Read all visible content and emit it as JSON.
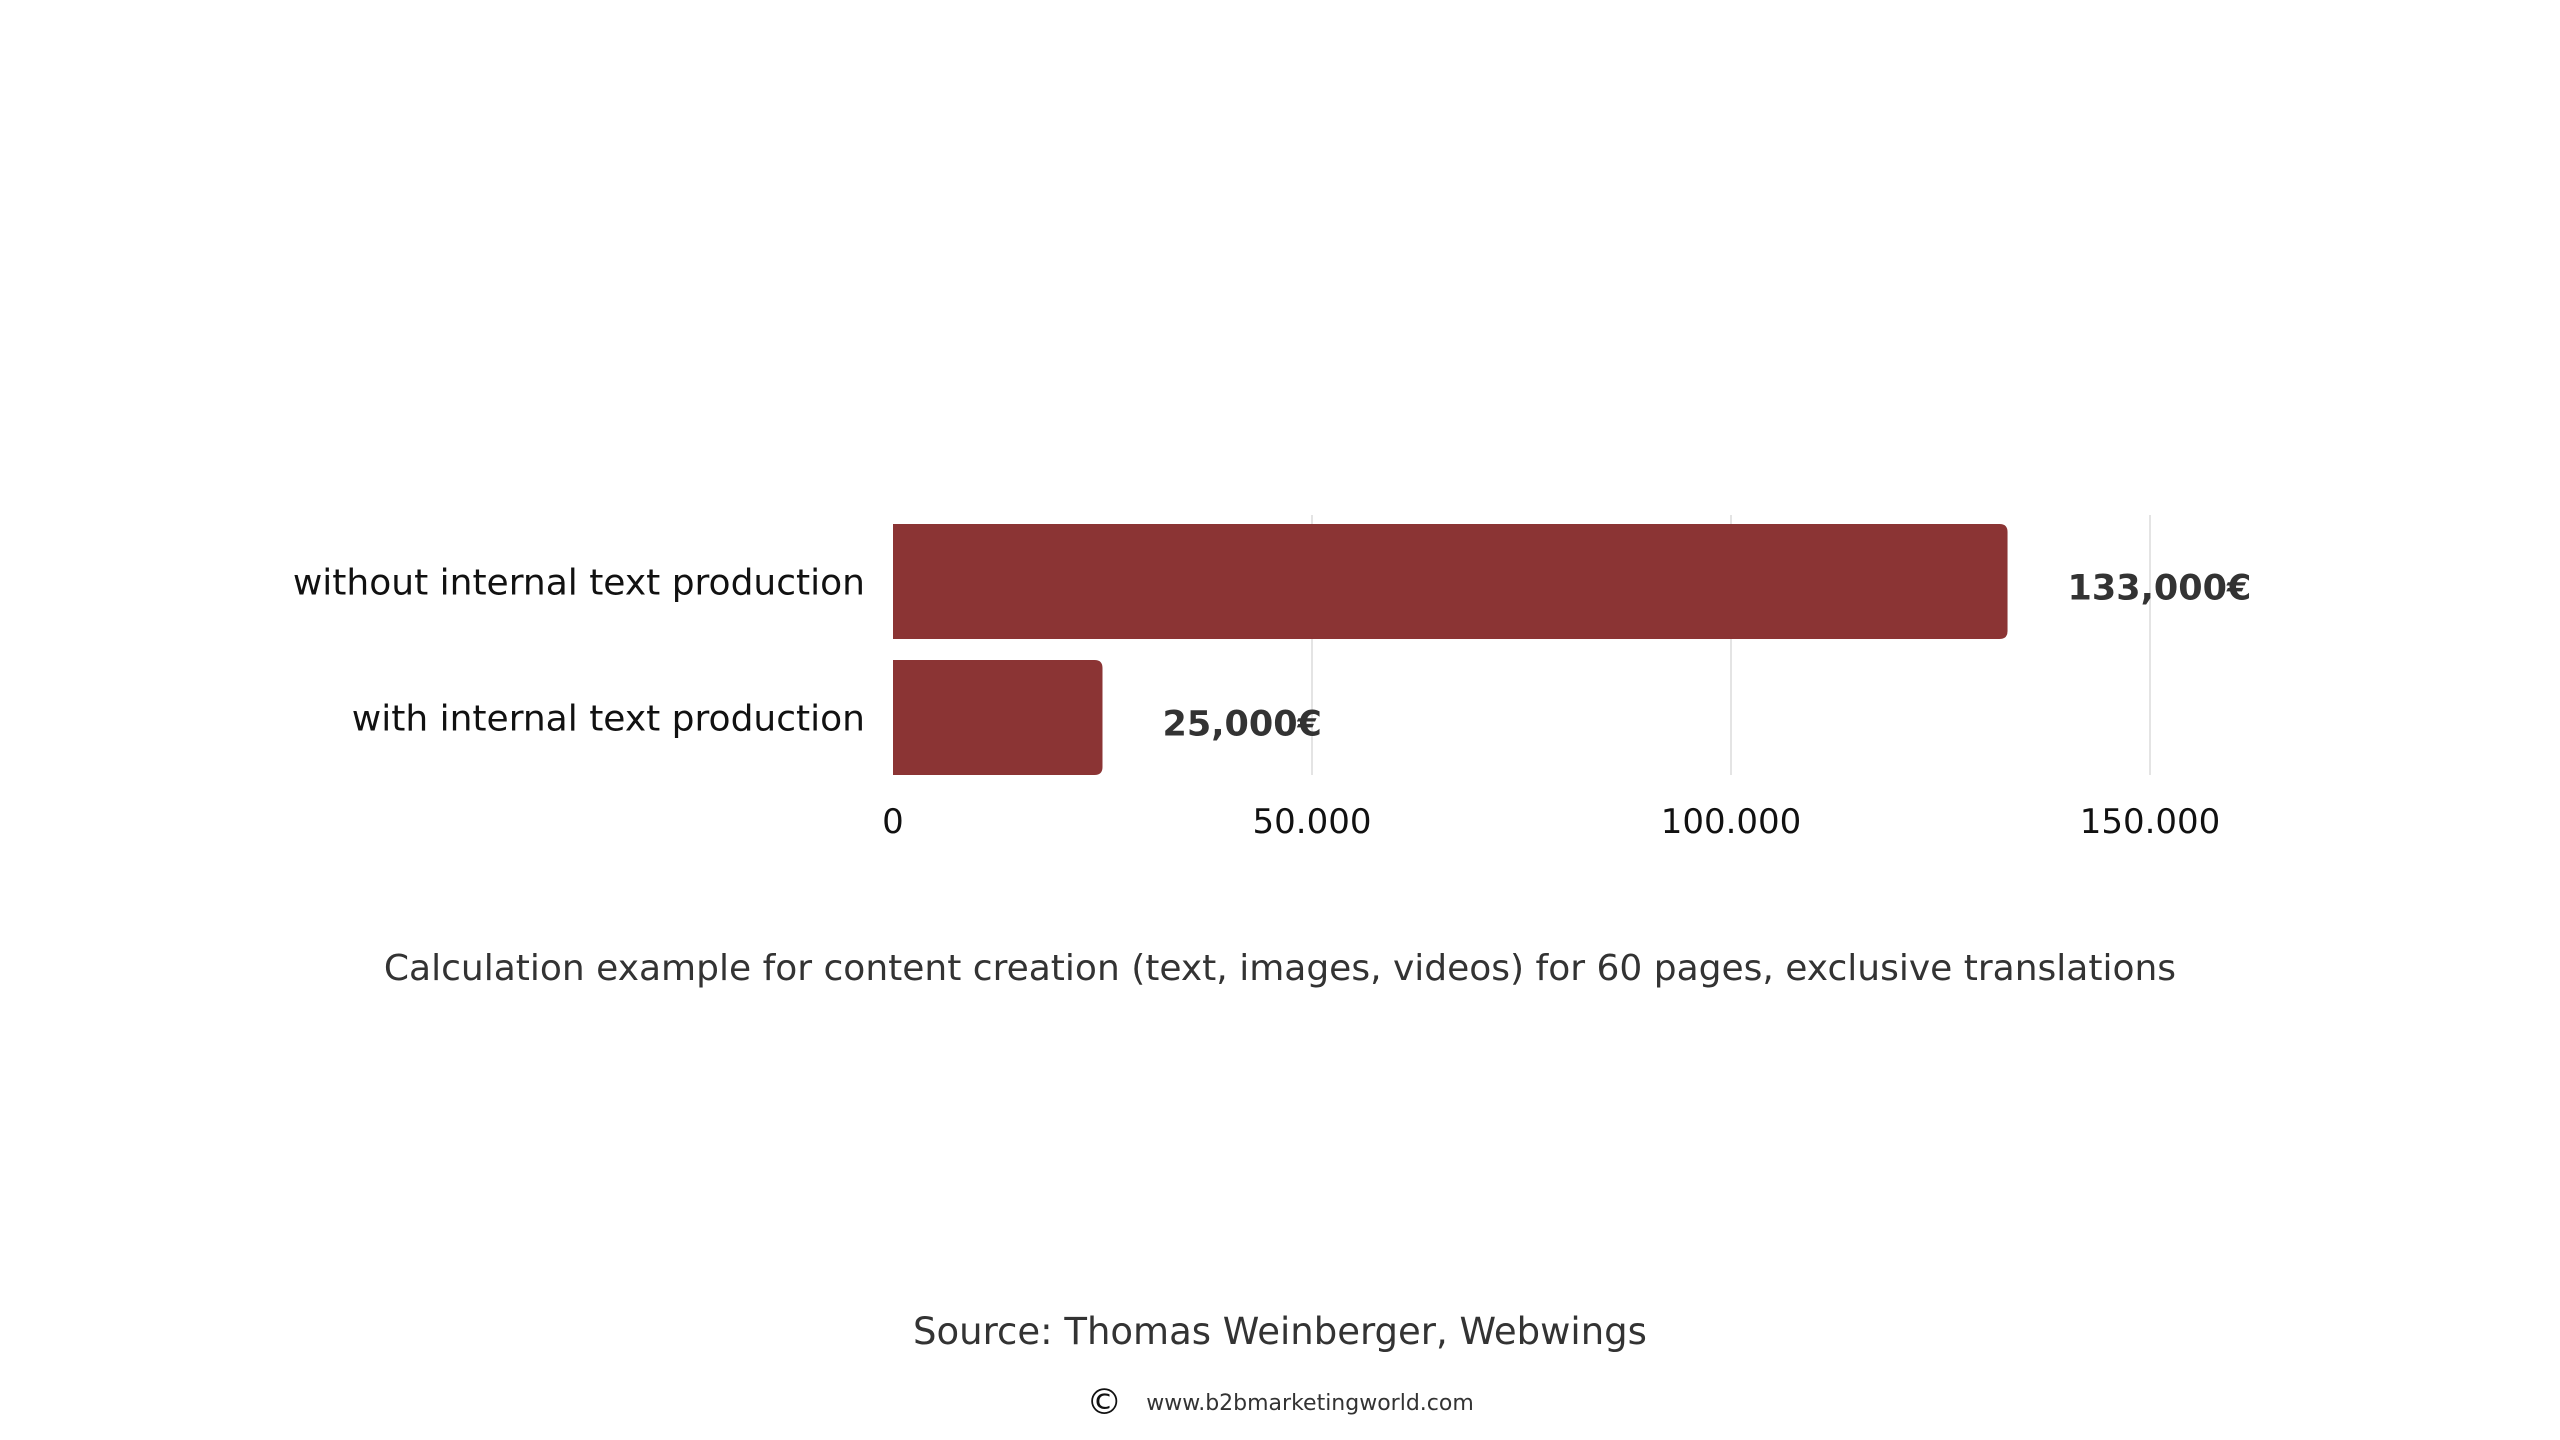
{
  "chart_data": {
    "type": "bar",
    "orientation": "horizontal",
    "categories": [
      "without internal text production",
      "with internal text production"
    ],
    "values": [
      133000,
      25000
    ],
    "data_labels": [
      "133,000€",
      "25,000€"
    ],
    "x_ticks": [
      0,
      50000,
      100000,
      150000
    ],
    "x_tick_labels": [
      "0",
      "50.000",
      "100.000",
      "150.000"
    ],
    "xlim": [
      0,
      150000
    ],
    "grid": "vertical",
    "bar_color": "#8b3434",
    "grid_color": "#e4e4e4"
  },
  "caption": "Calculation example for content creation (text, images, videos) for 60 pages, exclusive translations",
  "source": "Source: Thomas Weinberger, Webwings",
  "footer": {
    "icon": "copyright-icon",
    "website": "www.b2bmarketingworld.com"
  }
}
